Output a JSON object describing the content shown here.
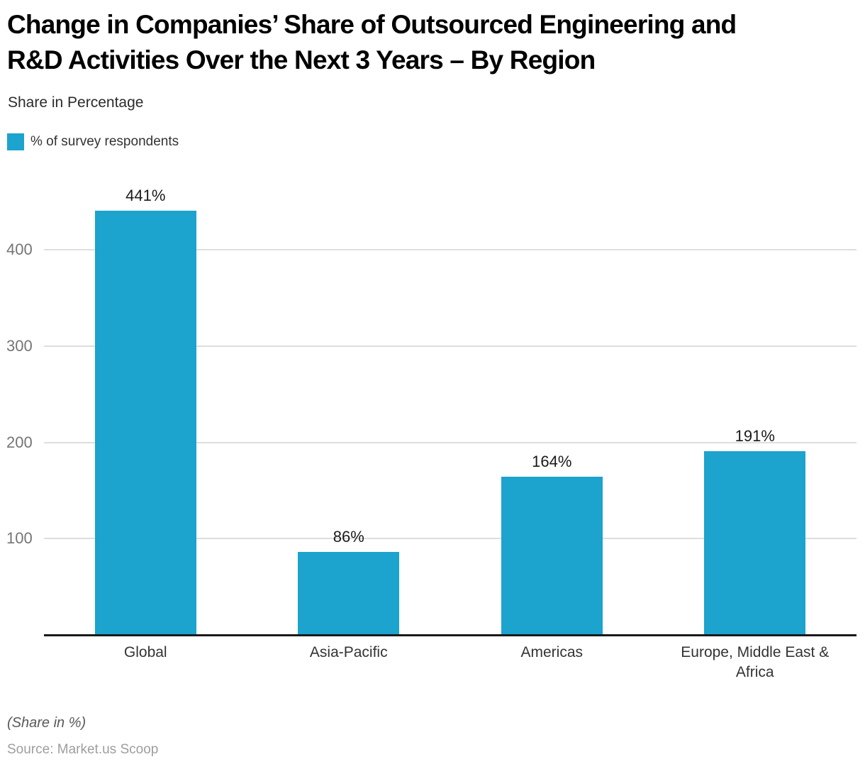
{
  "header": {
    "title_line1": "Change in Companies’ Share of Outsourced Engineering and",
    "title_line2": "R&D Activities Over the Next 3 Years – By Region",
    "subtitle": "Share in Percentage"
  },
  "legend": {
    "label": "% of survey respondents",
    "swatch_color": "#1CA3CE"
  },
  "chart_data": {
    "type": "bar",
    "title": "Change in Companies’ Share of Outsourced Engineering and R&D Activities Over the Next 3 Years – By Region",
    "subtitle": "Share in Percentage",
    "legend_entries": [
      "% of survey respondents"
    ],
    "legend_position": "top-left",
    "categories": [
      "Global",
      "Asia-Pacific",
      "Americas",
      "Europe, Middle East & Africa"
    ],
    "values": [
      441,
      86,
      164,
      191
    ],
    "value_labels": [
      "441%",
      "86%",
      "164%",
      "191%"
    ],
    "xlabel": "",
    "ylabel": "",
    "yticks": [
      100,
      200,
      300,
      400
    ],
    "ytick_labels": [
      "100",
      "200",
      "300",
      "400"
    ],
    "ylim": [
      0,
      455
    ],
    "grid": true,
    "bar_color": "#1CA3CE"
  },
  "footer": {
    "note": "(Share in %)",
    "source": "Source: Market.us Scoop"
  }
}
